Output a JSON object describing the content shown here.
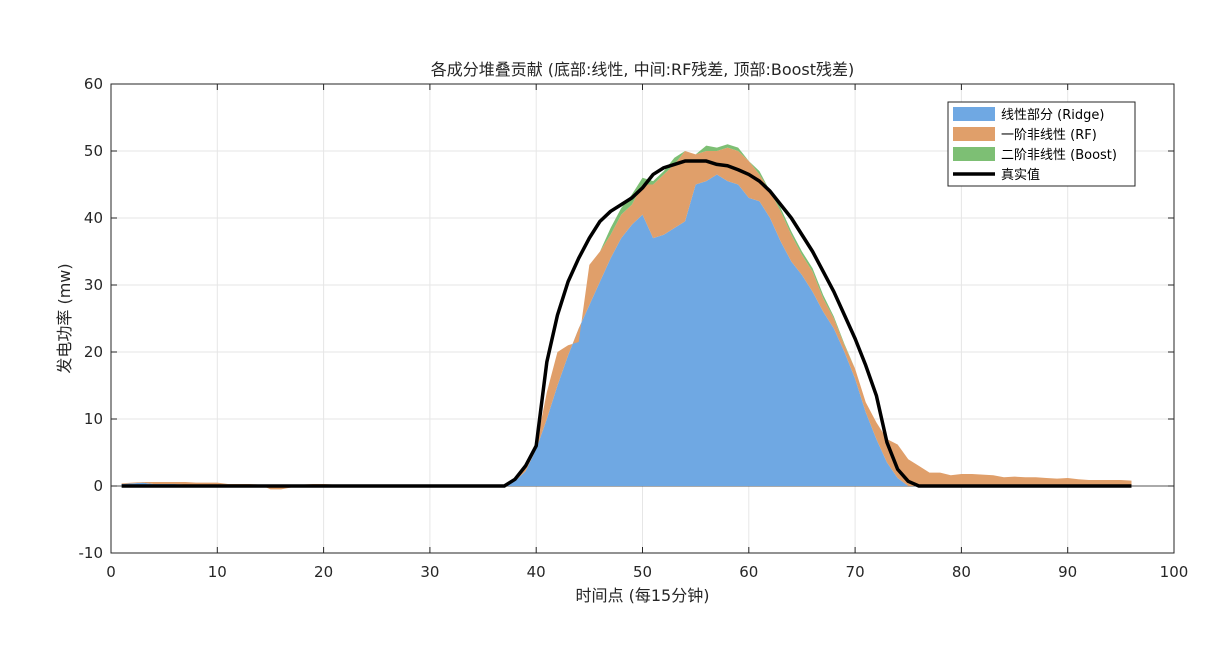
{
  "chart_data": {
    "type": "area",
    "title": "各成分堆叠贡献 (底部:线性, 中间:RF残差, 顶部:Boost残差)",
    "xlabel": "时间点 (每15分钟)",
    "ylabel": "发电功率 (mw)",
    "xlim": [
      0,
      100
    ],
    "ylim": [
      -10,
      60
    ],
    "xticks": [
      0,
      10,
      20,
      30,
      40,
      50,
      60,
      70,
      80,
      90,
      100
    ],
    "yticks": [
      -10,
      0,
      10,
      20,
      30,
      40,
      50,
      60
    ],
    "grid": true,
    "legend_position": "top-right",
    "x": [
      1,
      2,
      3,
      4,
      5,
      6,
      7,
      8,
      9,
      10,
      11,
      12,
      13,
      14,
      15,
      16,
      17,
      18,
      19,
      20,
      21,
      22,
      23,
      24,
      25,
      26,
      27,
      28,
      29,
      30,
      31,
      32,
      33,
      34,
      35,
      36,
      37,
      38,
      39,
      40,
      41,
      42,
      43,
      44,
      45,
      46,
      47,
      48,
      49,
      50,
      51,
      52,
      53,
      54,
      55,
      56,
      57,
      58,
      59,
      60,
      61,
      62,
      63,
      64,
      65,
      66,
      67,
      68,
      69,
      70,
      71,
      72,
      73,
      74,
      75,
      76,
      77,
      78,
      79,
      80,
      81,
      82,
      83,
      84,
      85,
      86,
      87,
      88,
      89,
      90,
      91,
      92,
      93,
      94,
      95,
      96
    ],
    "series": [
      {
        "name": "线性部分 (Ridge)",
        "color": "#6FA8E3",
        "values": [
          0.3,
          0.4,
          0.5,
          0.3,
          0.3,
          0.3,
          0.2,
          0.2,
          0.2,
          0.2,
          0.1,
          0.1,
          0.1,
          0.1,
          0.1,
          0.1,
          0.1,
          0.1,
          0.1,
          0.1,
          0.1,
          0,
          0,
          0,
          0,
          0,
          0,
          0,
          0,
          0,
          0,
          0,
          0,
          0,
          0,
          0,
          0.1,
          0.7,
          2.2,
          5.5,
          10,
          15,
          19.5,
          23.5,
          27,
          30.5,
          34,
          37,
          39,
          40.5,
          37,
          37.5,
          38.5,
          39.5,
          45,
          45.5,
          46.5,
          45.5,
          45,
          43,
          42.5,
          40,
          36.5,
          33.5,
          31.5,
          29,
          26,
          23.5,
          20,
          16,
          11,
          7,
          3.5,
          1.2,
          0,
          0,
          0,
          0,
          0,
          0,
          0,
          0,
          0,
          0,
          0,
          0,
          0,
          0,
          0,
          0,
          0,
          0,
          0,
          0,
          0,
          0
        ]
      },
      {
        "name": "一阶非线性 (RF)",
        "color": "#E09F6A",
        "values": [
          0.1,
          0.1,
          0.1,
          0.3,
          0.3,
          0.3,
          0.4,
          0.3,
          0.3,
          0.3,
          0.2,
          0.2,
          0.2,
          0.1,
          -0.6,
          -0.6,
          -0.3,
          0.1,
          0.2,
          0.2,
          0.1,
          0,
          0,
          0,
          0,
          0,
          0,
          0,
          0,
          0,
          0,
          0,
          0,
          0,
          0,
          0,
          0.1,
          0.3,
          0.5,
          0.5,
          4,
          5,
          1.5,
          -2,
          6,
          4.5,
          3.5,
          3.5,
          3,
          4.5,
          8,
          9,
          9.5,
          10.5,
          4.5,
          4.5,
          3.5,
          5,
          5,
          5.5,
          4,
          4,
          4.5,
          4,
          3,
          3,
          2,
          1.5,
          1,
          1.5,
          1.5,
          2.5,
          3.5,
          5,
          4,
          3,
          2,
          2,
          1.6,
          1.8,
          1.8,
          1.7,
          1.6,
          1.3,
          1.4,
          1.3,
          1.3,
          1.2,
          1.1,
          1.2,
          1,
          0.9,
          0.9,
          0.9,
          0.9,
          0.8
        ]
      },
      {
        "name": "二阶非线性 (Boost)",
        "color": "#7DBF74",
        "values": [
          0,
          0,
          0,
          0,
          0,
          0,
          0,
          0,
          0,
          0,
          0,
          0,
          0,
          0,
          0,
          0,
          0,
          0,
          0,
          0,
          0,
          0,
          0,
          0,
          0,
          0,
          0,
          0,
          0,
          0,
          0,
          0,
          0,
          0,
          0,
          0,
          0,
          0,
          0,
          0,
          0,
          0,
          0,
          0,
          0,
          0,
          1,
          1,
          1.5,
          1,
          0.5,
          0.5,
          1,
          0,
          0,
          0.8,
          0.5,
          0.5,
          0.5,
          0,
          0.5,
          0,
          0.5,
          0.5,
          0.5,
          0.5,
          0.5,
          0.3,
          0.2,
          0,
          0,
          0,
          0,
          0,
          0,
          0,
          0,
          0,
          0,
          0,
          0,
          0,
          0,
          0,
          0,
          0,
          0,
          0,
          0,
          0,
          0,
          0,
          0,
          0,
          0,
          0
        ]
      }
    ],
    "line": {
      "name": "真实值",
      "color": "#000000",
      "values": [
        0,
        0,
        0,
        0,
        0,
        0,
        0,
        0,
        0,
        0,
        0,
        0,
        0,
        0,
        0,
        0,
        0,
        0,
        0,
        0,
        0,
        0,
        0,
        0,
        0,
        0,
        0,
        0,
        0,
        0,
        0,
        0,
        0,
        0,
        0,
        0,
        0,
        1,
        3,
        6,
        18.5,
        25.5,
        30.5,
        34,
        37,
        39.5,
        41,
        42,
        43,
        44.5,
        46.5,
        47.5,
        48,
        48.5,
        48.5,
        48.5,
        48,
        47.8,
        47.2,
        46.5,
        45.5,
        44,
        42,
        40,
        37.5,
        35,
        32,
        29,
        25.5,
        22,
        18,
        13.5,
        6.5,
        2.5,
        0.7,
        0,
        0,
        0,
        0,
        0,
        0,
        0,
        0,
        0,
        0,
        0,
        0,
        0,
        0,
        0,
        0,
        0,
        0,
        0,
        0,
        0
      ]
    }
  }
}
